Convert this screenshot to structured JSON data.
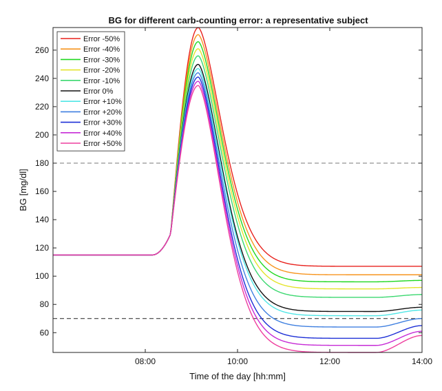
{
  "chart_data": {
    "type": "line",
    "title": "BG for different carb-counting error: a representative subject",
    "xlabel": "Time of the day [hh:mm]",
    "ylabel": "BG [mg/dl]",
    "xlim": [
      6.0,
      14.0
    ],
    "ylim": [
      46,
      276
    ],
    "x_ticks": [
      8,
      10,
      12,
      14
    ],
    "x_tick_labels": [
      "08:00",
      "10:00",
      "12:00",
      "14:00"
    ],
    "y_ticks": [
      60,
      80,
      100,
      120,
      140,
      160,
      180,
      200,
      220,
      240,
      260
    ],
    "y_tick_labels": [
      "60",
      "80",
      "100",
      "120",
      "140",
      "160",
      "180",
      "200",
      "220",
      "240",
      "260"
    ],
    "thresholds": [
      180,
      70
    ],
    "legend_position": "top-left",
    "grid": false,
    "baseline": 115,
    "series": [
      {
        "name": "Error -50%",
        "color": "#e8211c",
        "peak": 276,
        "end": 107,
        "min": 107
      },
      {
        "name": "Error -40%",
        "color": "#f7941d",
        "peak": 271,
        "end": 101,
        "min": 101
      },
      {
        "name": "Error -30%",
        "color": "#1fd81f",
        "peak": 266,
        "end": 97,
        "min": 96
      },
      {
        "name": "Error -20%",
        "color": "#e4e42a",
        "peak": 261,
        "end": 92,
        "min": 91
      },
      {
        "name": "Error -10%",
        "color": "#3ad86f",
        "peak": 256,
        "end": 87,
        "min": 85
      },
      {
        "name": "Error 0%",
        "color": "#111111",
        "peak": 250,
        "end": 78,
        "min": 75
      },
      {
        "name": "Error +10%",
        "color": "#4fe6e6",
        "peak": 247,
        "end": 76,
        "min": 72
      },
      {
        "name": "Error +20%",
        "color": "#3e7fe0",
        "peak": 244,
        "end": 70,
        "min": 64
      },
      {
        "name": "Error +30%",
        "color": "#1c2fd6",
        "peak": 241,
        "end": 65,
        "min": 56
      },
      {
        "name": "Error +40%",
        "color": "#c62ad6",
        "peak": 238,
        "end": 61,
        "min": 51
      },
      {
        "name": "Error +50%",
        "color": "#ee3e9e",
        "peak": 235,
        "end": 58,
        "min": 46
      }
    ]
  }
}
